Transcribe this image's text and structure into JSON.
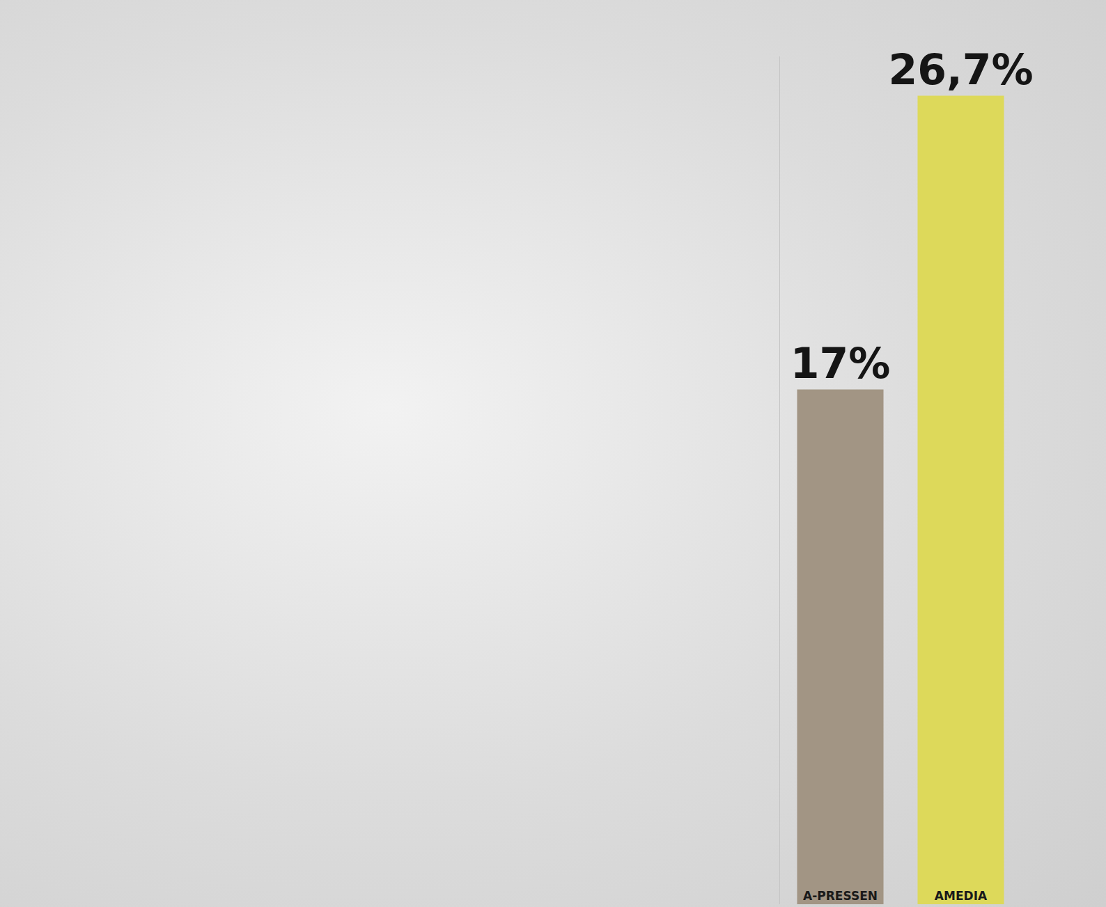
{
  "chart_data": {
    "type": "bar",
    "categories": [
      "A-PRESSEN",
      "AMEDIA"
    ],
    "values": [
      17,
      26.7
    ],
    "value_labels": [
      "17%",
      "26,7%"
    ],
    "colors": [
      "#a29584",
      "#ddd95a"
    ],
    "ylim": [
      0,
      28
    ],
    "data_labels": true,
    "tick_labels": "x",
    "grid": false
  }
}
